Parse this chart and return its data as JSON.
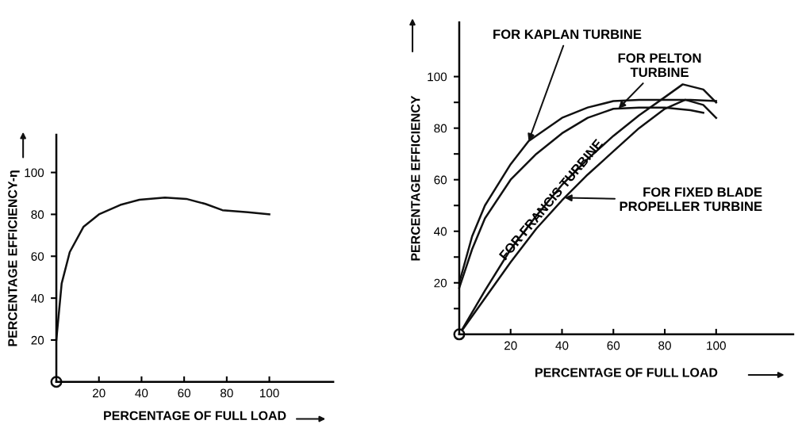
{
  "chart_data": [
    {
      "type": "line",
      "xlabel": "PERCENTAGE OF FULL LOAD",
      "ylabel": "PERCENTAGE EFFICIENCY-η",
      "xlim": [
        0,
        130
      ],
      "ylim": [
        0,
        118
      ],
      "xticks": [
        20,
        40,
        60,
        80,
        100
      ],
      "yticks": [
        20,
        40,
        60,
        80,
        100
      ],
      "series": [
        {
          "color": "#111111",
          "x": [
            0,
            2.5,
            6.3,
            12.7,
            20,
            30,
            39,
            51,
            61,
            70,
            78,
            90,
            100
          ],
          "values": [
            20,
            47,
            62,
            74,
            80,
            84.5,
            87,
            88,
            87.4,
            85,
            82,
            81,
            80
          ]
        }
      ]
    },
    {
      "type": "line",
      "ylabel": "PERCENTAGE EFFICIENCY",
      "xlabel": "PERCENTAGE OF FULL LOAD",
      "xlim": [
        0,
        130
      ],
      "ylim": [
        0,
        121
      ],
      "xticks": [
        20,
        40,
        60,
        80,
        100
      ],
      "yticks": [
        {
          "value": 10,
          "label": null
        },
        20,
        {
          "value": 30,
          "label": null
        },
        40,
        {
          "value": 50,
          "label": null
        },
        60,
        {
          "value": 70,
          "label": null
        },
        80,
        {
          "value": 90,
          "label": null
        },
        100
      ],
      "series": [
        {
          "name": "FOR KAPLAN TURBINE",
          "color": "#111111",
          "x": [
            0,
            5,
            10,
            20,
            27,
            40,
            50,
            60,
            70,
            80,
            90,
            100
          ],
          "values": [
            20,
            38,
            50,
            66,
            75,
            84,
            88,
            90.5,
            91,
            91,
            91,
            90.5
          ]
        },
        {
          "name": "FOR PELTON TURBINE",
          "color": "#111111",
          "x": [
            0,
            5,
            10,
            20,
            30,
            40,
            50,
            60,
            70,
            80,
            90,
            95
          ],
          "values": [
            18,
            33,
            45,
            60,
            70,
            78,
            84,
            87.5,
            88,
            88,
            87,
            86
          ]
        },
        {
          "name": "FOR FRANCIS TURBINE",
          "color": "#111111",
          "x": [
            0,
            10,
            20,
            30,
            40,
            50,
            60,
            70,
            80,
            87,
            95,
            100
          ],
          "values": [
            0,
            17,
            33,
            46,
            58,
            68,
            77,
            85,
            92,
            97,
            95,
            90
          ]
        },
        {
          "name": "FOR FIXED BLADE PROPELLER TURBINE",
          "color": "#111111",
          "x": [
            0,
            10,
            20,
            30,
            40,
            50,
            60,
            70,
            80,
            88,
            95,
            100
          ],
          "values": [
            0,
            14,
            28,
            41,
            52,
            62,
            71,
            80,
            87.5,
            91,
            89,
            84
          ]
        }
      ]
    }
  ]
}
